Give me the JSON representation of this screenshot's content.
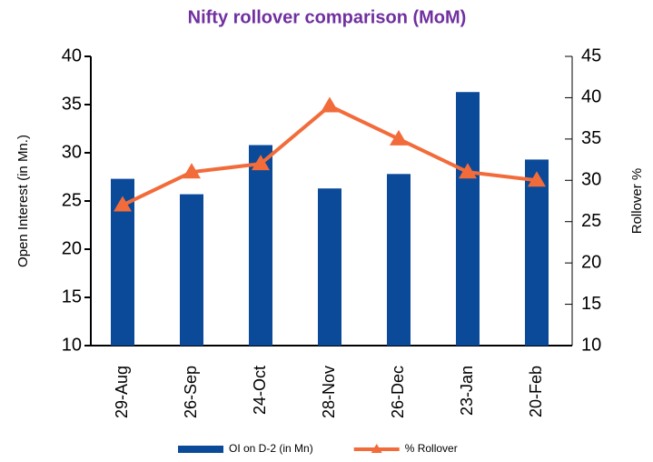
{
  "chart_data": {
    "type": "bar-line",
    "title": "Nifty rollover comparison (MoM)",
    "categories": [
      "29-Aug",
      "26-Sep",
      "24-Oct",
      "28-Nov",
      "26-Dec",
      "23-Jan",
      "20-Feb"
    ],
    "series": [
      {
        "name": "OI on D-2 (in Mn)",
        "type": "bar",
        "color": "#0b4a99",
        "values": [
          27.3,
          25.7,
          30.8,
          26.3,
          27.8,
          36.3,
          29.3
        ]
      },
      {
        "name": "% Rollover",
        "type": "line",
        "axis": "y2",
        "color": "#f26b3a",
        "values": [
          27,
          31,
          32,
          39,
          35,
          31,
          30
        ]
      }
    ],
    "ylabel": "Open Interest (in Mn.)",
    "y2label": "Rollover %",
    "ylim": [
      10,
      40
    ],
    "yticks": [
      10,
      15,
      20,
      25,
      30,
      35,
      40
    ],
    "y2lim": [
      10,
      45
    ],
    "y2ticks": [
      10,
      15,
      20,
      25,
      30,
      35,
      40,
      45
    ],
    "legend": "bottom"
  }
}
